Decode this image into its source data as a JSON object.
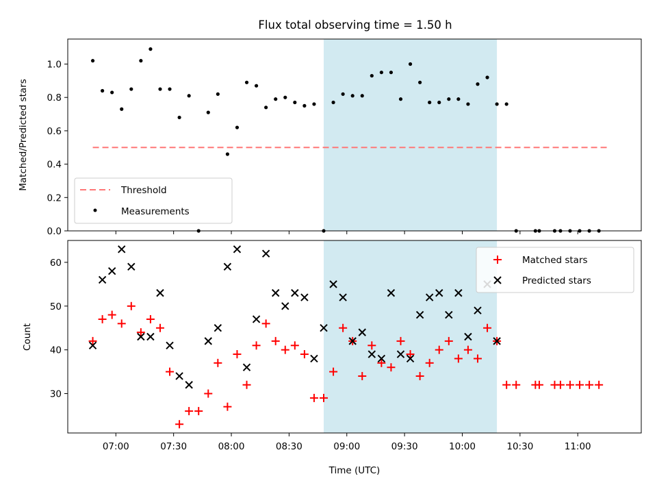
{
  "figure": {
    "title": "Flux total observing time = 1.50 h"
  },
  "colors": {
    "measurement": "#000000",
    "threshold": "#ff7777",
    "matched": "#ff0000",
    "predicted": "#000000",
    "shade": "#add8e6"
  },
  "chart_data": [
    {
      "type": "scatter",
      "panel": "top",
      "title": "Flux total observing time = 1.50 h",
      "xlabel": "",
      "ylabel": "Matched/Predicted stars",
      "xlim": [
        "06:35",
        "11:33"
      ],
      "ylim": [
        0.0,
        1.15
      ],
      "yticks": [
        0.0,
        0.2,
        0.4,
        0.6,
        0.8,
        1.0
      ],
      "ytick_labels": [
        "0.0",
        "0.2",
        "0.4",
        "0.6",
        "0.8",
        "1.0"
      ],
      "xticks": [
        "07:00",
        "07:30",
        "08:00",
        "08:30",
        "09:00",
        "09:30",
        "10:00",
        "10:30",
        "11:00"
      ],
      "shaded_region": [
        "08:48",
        "10:18"
      ],
      "threshold": {
        "name": "Threshold",
        "y": 0.5,
        "x_range": [
          "06:48",
          "11:16"
        ],
        "style": "dashed"
      },
      "legend": {
        "placement": "lower-left",
        "entries": [
          "Threshold",
          "Measurements"
        ]
      },
      "series": [
        {
          "name": "Measurements",
          "marker": "dot",
          "x": [
            "06:48",
            "06:53",
            "06:58",
            "07:03",
            "07:08",
            "07:13",
            "07:18",
            "07:23",
            "07:28",
            "07:33",
            "07:38",
            "07:43",
            "07:48",
            "07:53",
            "07:58",
            "08:03",
            "08:08",
            "08:13",
            "08:18",
            "08:23",
            "08:28",
            "08:33",
            "08:38",
            "08:43",
            "08:48",
            "08:53",
            "08:58",
            "09:03",
            "09:08",
            "09:13",
            "09:18",
            "09:23",
            "09:28",
            "09:33",
            "09:38",
            "09:43",
            "09:48",
            "09:53",
            "09:58",
            "10:03",
            "10:08",
            "10:13",
            "10:18",
            "10:23",
            "10:28",
            "10:38",
            "10:40",
            "10:48",
            "10:51",
            "10:56",
            "11:01",
            "11:06",
            "11:11"
          ],
          "y": [
            1.02,
            0.84,
            0.83,
            0.73,
            0.85,
            1.02,
            1.09,
            0.85,
            0.85,
            0.68,
            0.81,
            0.0,
            0.71,
            0.82,
            0.46,
            0.62,
            0.89,
            0.87,
            0.74,
            0.79,
            0.8,
            0.77,
            0.75,
            0.76,
            0.0,
            0.77,
            0.82,
            0.81,
            0.81,
            0.93,
            0.95,
            0.95,
            0.79,
            1.0,
            0.89,
            0.77,
            0.77,
            0.79,
            0.79,
            0.76,
            0.88,
            0.92,
            0.76,
            0.76,
            0.0,
            0.0,
            0.0,
            0.0,
            0.0,
            0.0,
            0.0,
            0.0,
            0.0
          ]
        }
      ]
    },
    {
      "type": "scatter",
      "panel": "bottom",
      "xlabel": "Time (UTC)",
      "ylabel": "Count",
      "xlim": [
        "06:35",
        "11:33"
      ],
      "ylim": [
        21,
        65
      ],
      "yticks": [
        30,
        40,
        50,
        60
      ],
      "ytick_labels": [
        "30",
        "40",
        "50",
        "60"
      ],
      "xticks": [
        "07:00",
        "07:30",
        "08:00",
        "08:30",
        "09:00",
        "09:30",
        "10:00",
        "10:30",
        "11:00"
      ],
      "xtick_labels": [
        "07:00",
        "07:30",
        "08:00",
        "08:30",
        "09:00",
        "09:30",
        "10:00",
        "10:30",
        "11:00"
      ],
      "shaded_region": [
        "08:48",
        "10:18"
      ],
      "legend": {
        "placement": "top-right",
        "entries": [
          "Matched stars",
          "Predicted stars"
        ]
      },
      "series": [
        {
          "name": "Matched stars",
          "marker": "plus",
          "x": [
            "06:48",
            "06:53",
            "06:58",
            "07:03",
            "07:08",
            "07:13",
            "07:18",
            "07:23",
            "07:28",
            "07:33",
            "07:38",
            "07:43",
            "07:48",
            "07:53",
            "07:58",
            "08:03",
            "08:08",
            "08:13",
            "08:18",
            "08:23",
            "08:28",
            "08:33",
            "08:38",
            "08:43",
            "08:48",
            "08:53",
            "08:58",
            "09:03",
            "09:08",
            "09:13",
            "09:18",
            "09:23",
            "09:28",
            "09:33",
            "09:38",
            "09:43",
            "09:48",
            "09:53",
            "09:58",
            "10:03",
            "10:08",
            "10:13",
            "10:18",
            "10:23",
            "10:28",
            "10:38",
            "10:40",
            "10:48",
            "10:51",
            "10:56",
            "11:01",
            "11:06",
            "11:11"
          ],
          "y": [
            42,
            47,
            48,
            46,
            50,
            44,
            47,
            45,
            35,
            23,
            26,
            26,
            30,
            37,
            27,
            39,
            32,
            41,
            46,
            42,
            40,
            41,
            39,
            29,
            29,
            35,
            45,
            42,
            34,
            41,
            37,
            36,
            42,
            39,
            34,
            37,
            40,
            42,
            38,
            40,
            38,
            45,
            42,
            32,
            32,
            32,
            32,
            32,
            32,
            32,
            32,
            32,
            32
          ]
        },
        {
          "name": "Predicted stars",
          "marker": "x",
          "x": [
            "06:48",
            "06:53",
            "06:58",
            "07:03",
            "07:08",
            "07:13",
            "07:18",
            "07:23",
            "07:28",
            "07:33",
            "07:38",
            "07:48",
            "07:53",
            "07:58",
            "08:03",
            "08:08",
            "08:13",
            "08:18",
            "08:23",
            "08:28",
            "08:33",
            "08:38",
            "08:43",
            "08:48",
            "08:53",
            "08:58",
            "09:03",
            "09:08",
            "09:13",
            "09:18",
            "09:23",
            "09:28",
            "09:33",
            "09:38",
            "09:43",
            "09:48",
            "09:53",
            "09:58",
            "10:03",
            "10:08",
            "10:13",
            "10:18"
          ],
          "y": [
            41,
            56,
            58,
            63,
            59,
            43,
            43,
            53,
            41,
            34,
            32,
            42,
            45,
            59,
            63,
            36,
            47,
            62,
            53,
            50,
            53,
            52,
            38,
            45,
            55,
            52,
            42,
            44,
            39,
            38,
            53,
            39,
            38,
            48,
            52,
            53,
            48,
            53,
            43,
            49,
            55,
            42
          ]
        }
      ]
    }
  ]
}
